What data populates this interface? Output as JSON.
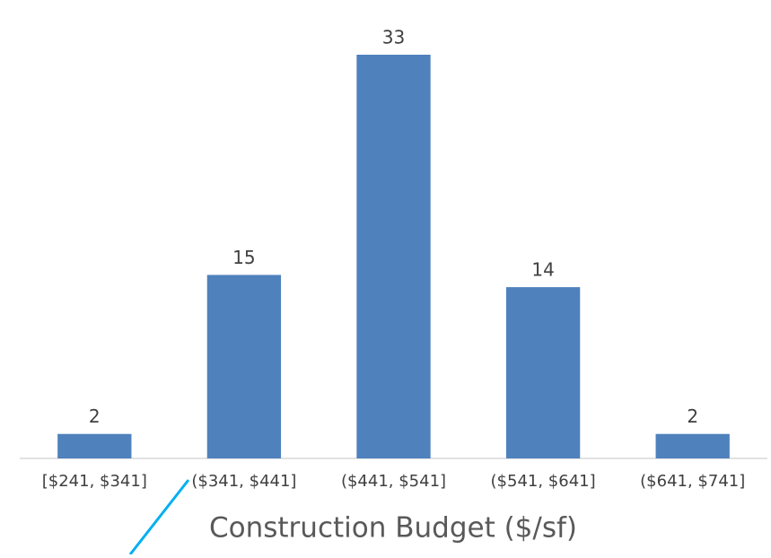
{
  "chart_data": {
    "type": "bar",
    "categories": [
      "[$241, $341]",
      "($341, $441]",
      "($441, $541]",
      "($541, $641]",
      "($641, $741]"
    ],
    "values": [
      2,
      15,
      33,
      14,
      2
    ],
    "color": "#4f81bd",
    "x_label": "Construction Budget ($/sf)"
  }
}
